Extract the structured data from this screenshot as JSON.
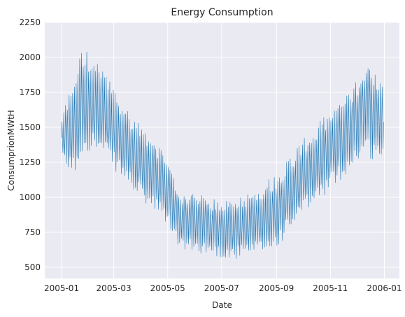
{
  "chart_data": {
    "type": "line",
    "title": "Energy Consumption",
    "xlabel": "Date",
    "ylabel": "ConsumprionMWtH",
    "x_start": "2005-01-01",
    "x_end": "2005-12-31",
    "xlim": [
      "2004-12-13",
      "2006-01-18"
    ],
    "ylim": [
      420,
      2250
    ],
    "x_ticks": [
      "2005-01",
      "2005-03",
      "2005-05",
      "2005-07",
      "2005-09",
      "2005-11",
      "2006-01"
    ],
    "y_ticks": [
      500,
      750,
      1000,
      1250,
      1500,
      1750,
      2000,
      2250
    ],
    "grid": true,
    "colors": {
      "background": "#eaeaf2",
      "grid": "#ffffff",
      "line": "#1f77b4",
      "text": "#262626"
    },
    "series": [
      {
        "x": [
          "2005-01-01",
          "2005-01-15",
          "2005-01-25",
          "2005-02-05",
          "2005-02-20",
          "2005-03-05",
          "2005-03-20",
          "2005-04-01",
          "2005-04-15",
          "2005-04-25",
          "2005-05-05",
          "2005-05-15",
          "2005-06-01",
          "2005-06-15",
          "2005-07-01",
          "2005-07-15",
          "2005-08-01",
          "2005-08-15",
          "2005-09-01",
          "2005-09-15",
          "2005-10-01",
          "2005-10-15",
          "2005-11-01",
          "2005-11-15",
          "2005-12-01",
          "2005-12-10",
          "2005-12-20",
          "2005-12-31"
        ],
        "upper": [
          1580,
          1860,
          2080,
          1980,
          1900,
          1720,
          1600,
          1510,
          1440,
          1310,
          1180,
          1040,
          1020,
          1000,
          960,
          1000,
          1030,
          1090,
          1170,
          1280,
          1420,
          1500,
          1620,
          1700,
          1830,
          1980,
          1900,
          1820
        ],
        "lower": [
          1250,
          1150,
          1330,
          1350,
          1280,
          1180,
          1080,
          980,
          900,
          860,
          760,
          630,
          610,
          600,
          570,
          560,
          580,
          600,
          640,
          760,
          880,
          960,
          1060,
          1140,
          1260,
          1310,
          1270,
          1300
        ]
      }
    ]
  }
}
